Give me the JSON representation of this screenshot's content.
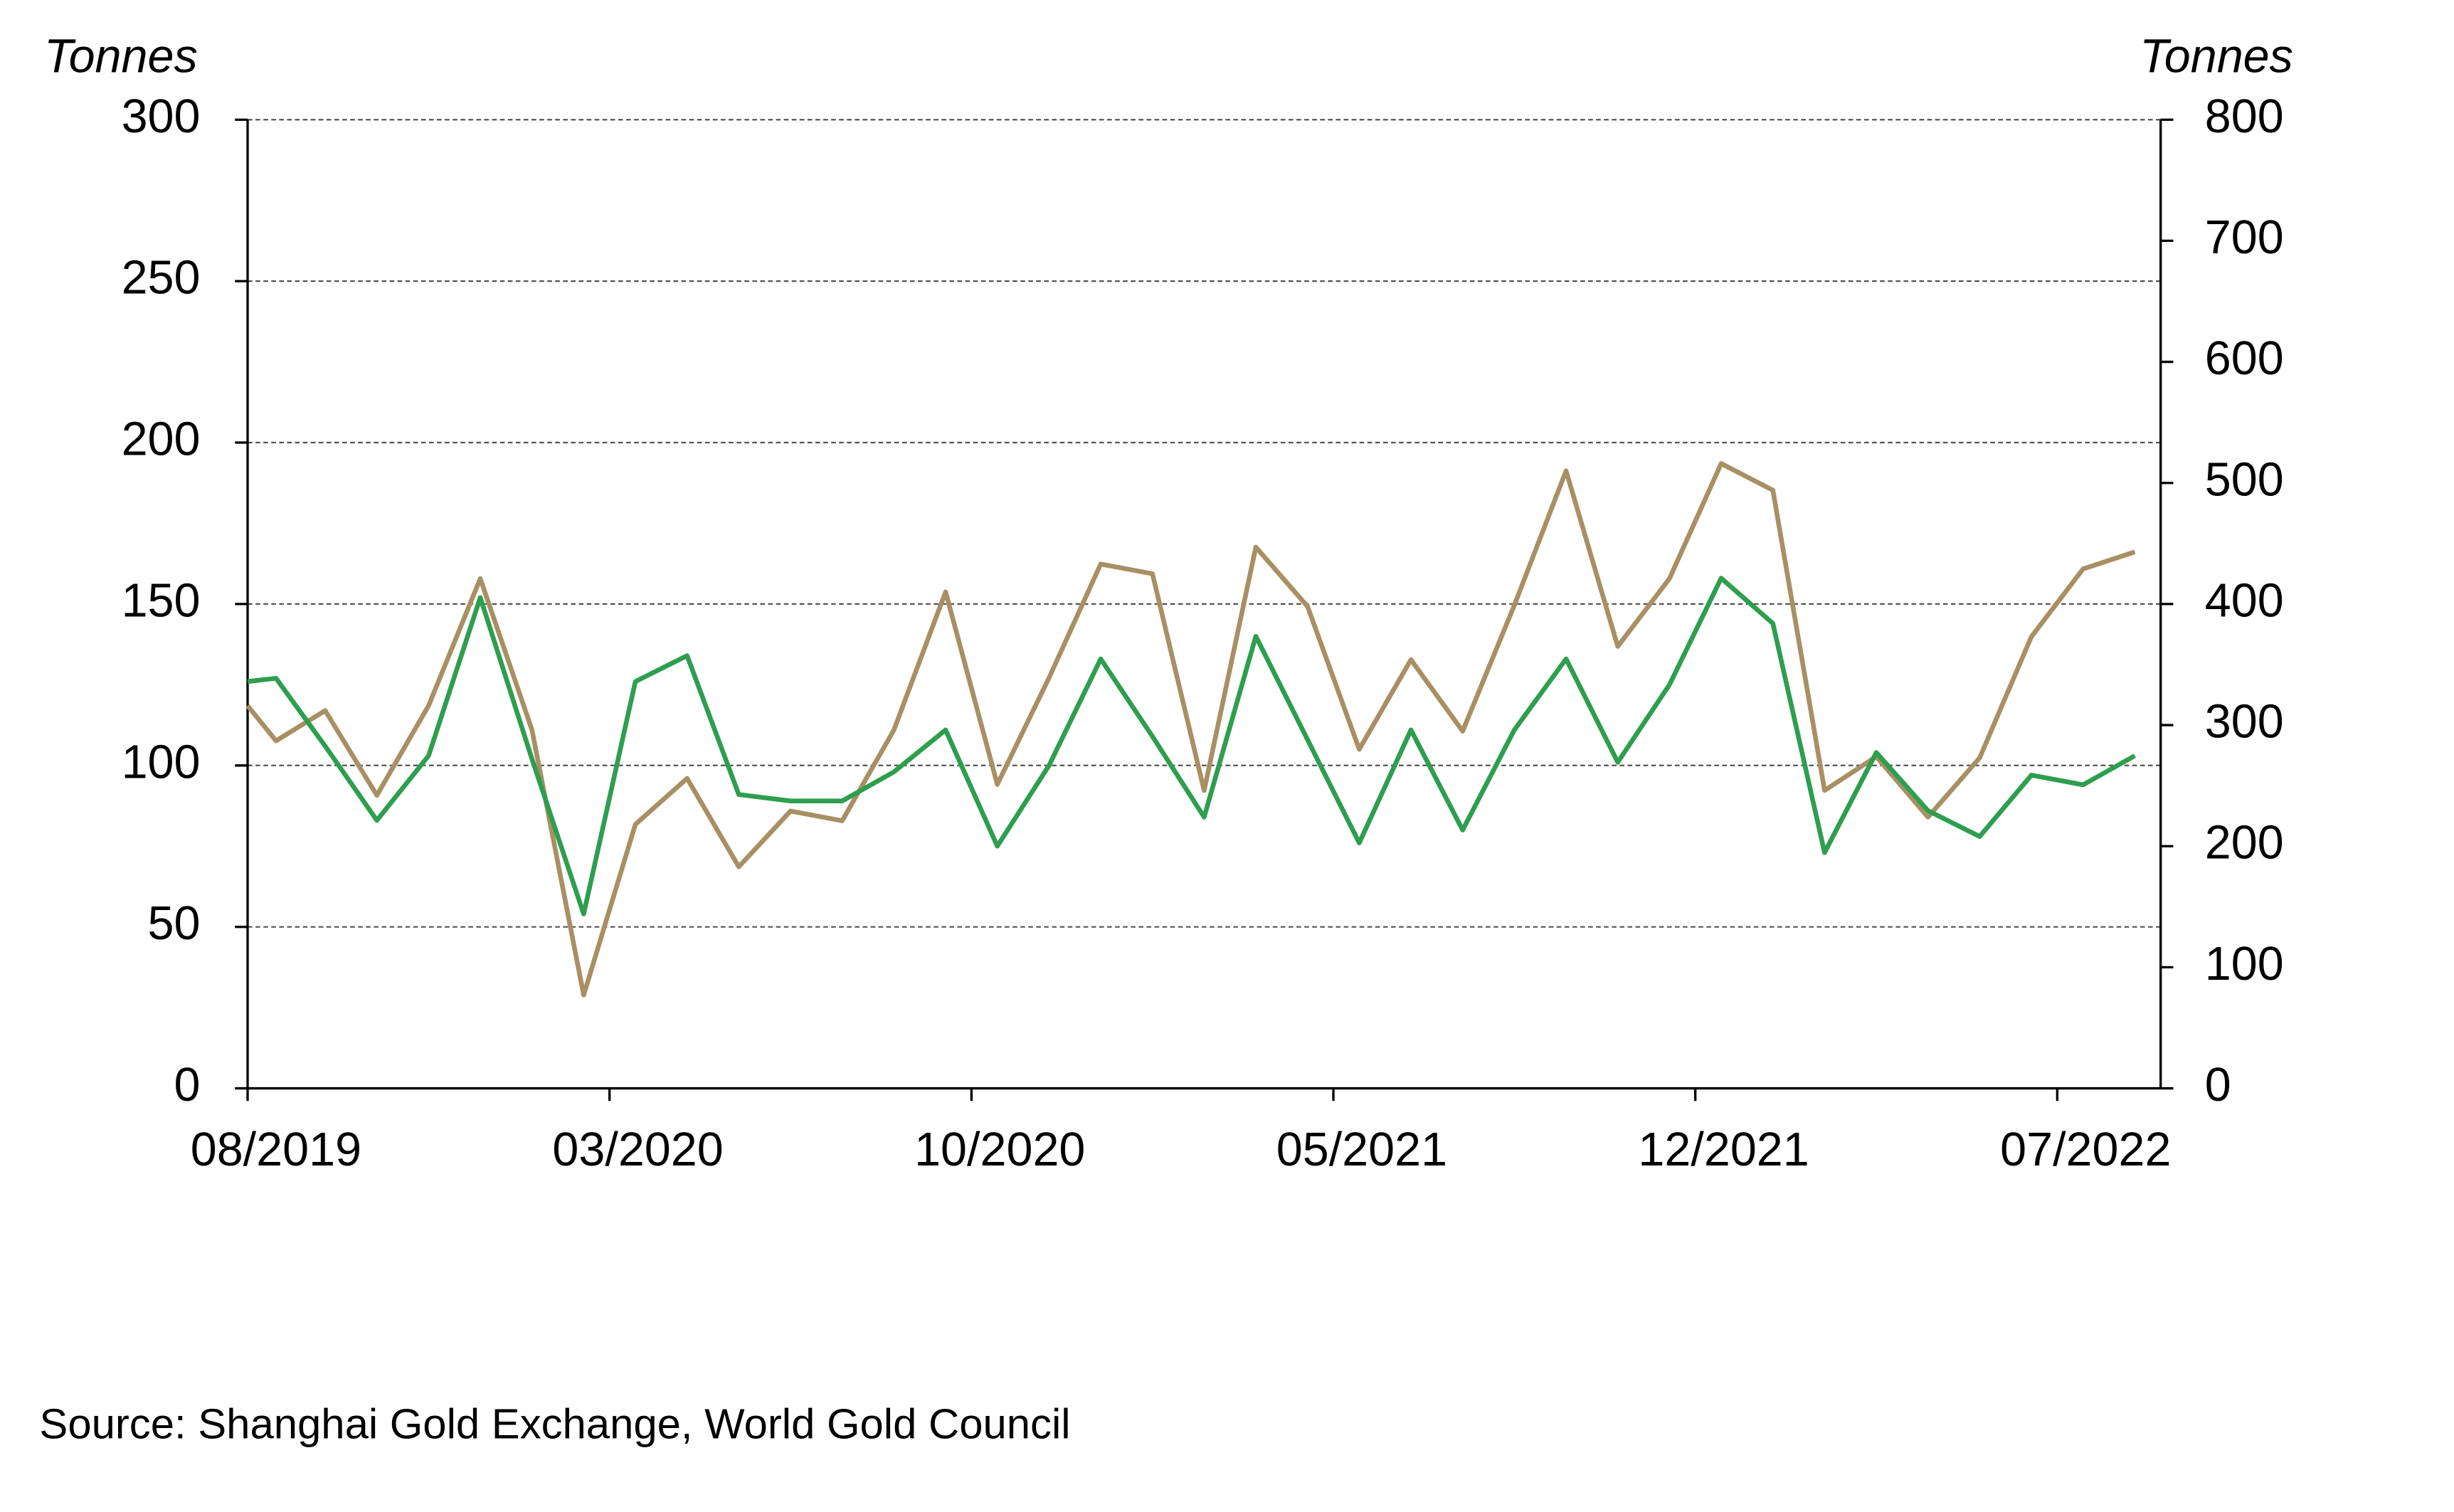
{
  "chart_data": {
    "type": "line",
    "y_label": "Tonnes",
    "y2_label": "Tonnes",
    "source": "Source: Shanghai Gold Exchange, World Gold Council",
    "categories": [
      "08/2019",
      null,
      null,
      null,
      null,
      null,
      null,
      null,
      "03/2020",
      null,
      null,
      null,
      null,
      null,
      null,
      "10/2020",
      null,
      null,
      null,
      null,
      null,
      null,
      "05/2021",
      null,
      null,
      null,
      null,
      null,
      null,
      "12/2021",
      null,
      null,
      null,
      null,
      null,
      null,
      "07/2022",
      null
    ],
    "series": [
      {
        "color": "#2e9e4f",
        "values": [
          126,
          127,
          106,
          83,
          103,
          152,
          102,
          54,
          126,
          134,
          91,
          89,
          89,
          98,
          111,
          75,
          100,
          133,
          109,
          84,
          140,
          108,
          76,
          111,
          80,
          111,
          133,
          101,
          125,
          158,
          144,
          73,
          104,
          86,
          78,
          97,
          94,
          103
        ]
      },
      {
        "color": "#a89064",
        "axis": "y2",
        "values": [
          316,
          287,
          312,
          242,
          316,
          421,
          296,
          77,
          218,
          256,
          183,
          229,
          221,
          296,
          410,
          251,
          339,
          433,
          425,
          246,
          447,
          398,
          280,
          354,
          295,
          399,
          510,
          365,
          421,
          516,
          494,
          246,
          274,
          224,
          273,
          373,
          429,
          443
        ]
      }
    ],
    "ylim": [
      0,
      300
    ],
    "yticks": [
      0,
      50,
      100,
      150,
      200,
      250,
      300
    ],
    "y2lim": [
      0,
      800
    ],
    "y2ticks": [
      0,
      100,
      200,
      300,
      400,
      500,
      600,
      700,
      800
    ],
    "grid": true
  }
}
